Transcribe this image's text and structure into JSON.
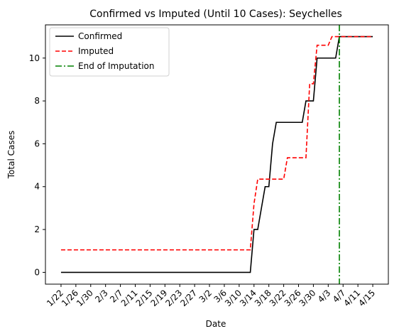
{
  "chart_data": {
    "type": "line",
    "title": "Confirmed vs Imputed (Until 10 Cases): Seychelles",
    "xlabel": "Date",
    "ylabel": "Total Cases",
    "ylim": [
      -0.55,
      11.55
    ],
    "yticks": [
      0,
      2,
      4,
      6,
      8,
      10
    ],
    "x_start": "1/22",
    "x_end": "4/15",
    "xticks": [
      "1/22",
      "1/26",
      "1/30",
      "2/3",
      "2/7",
      "2/11",
      "2/15",
      "2/19",
      "2/23",
      "2/27",
      "3/2",
      "3/6",
      "3/10",
      "3/14",
      "3/18",
      "3/22",
      "3/26",
      "3/30",
      "4/3",
      "4/7",
      "4/11",
      "4/15"
    ],
    "grid": false,
    "legend_position": "top-left",
    "series": [
      {
        "name": "Confirmed",
        "color": "#000000",
        "style": "solid",
        "points": [
          [
            "1/22",
            0
          ],
          [
            "3/13",
            0
          ],
          [
            "3/14",
            2
          ],
          [
            "3/15",
            2
          ],
          [
            "3/16",
            3
          ],
          [
            "3/17",
            4
          ],
          [
            "3/18",
            4
          ],
          [
            "3/19",
            6
          ],
          [
            "3/20",
            7
          ],
          [
            "3/27",
            7
          ],
          [
            "3/28",
            8
          ],
          [
            "3/30",
            8
          ],
          [
            "3/31",
            10
          ],
          [
            "4/5",
            10
          ],
          [
            "4/6",
            11
          ],
          [
            "4/15",
            11
          ]
        ]
      },
      {
        "name": "Imputed",
        "color": "#ff0000",
        "style": "dashed",
        "points": [
          [
            "1/22",
            1.05
          ],
          [
            "3/13",
            1.05
          ],
          [
            "3/14",
            3.2
          ],
          [
            "3/15",
            4.35
          ],
          [
            "3/22",
            4.35
          ],
          [
            "3/23",
            5.35
          ],
          [
            "3/28",
            5.35
          ],
          [
            "3/29",
            8.8
          ],
          [
            "3/30",
            8.8
          ],
          [
            "3/31",
            10.6
          ],
          [
            "4/3",
            10.6
          ],
          [
            "4/4",
            11
          ],
          [
            "4/15",
            11
          ]
        ]
      }
    ],
    "vline": {
      "name": "End of Imputation",
      "x": "4/6",
      "color": "#008000",
      "style": "dashdot"
    }
  }
}
